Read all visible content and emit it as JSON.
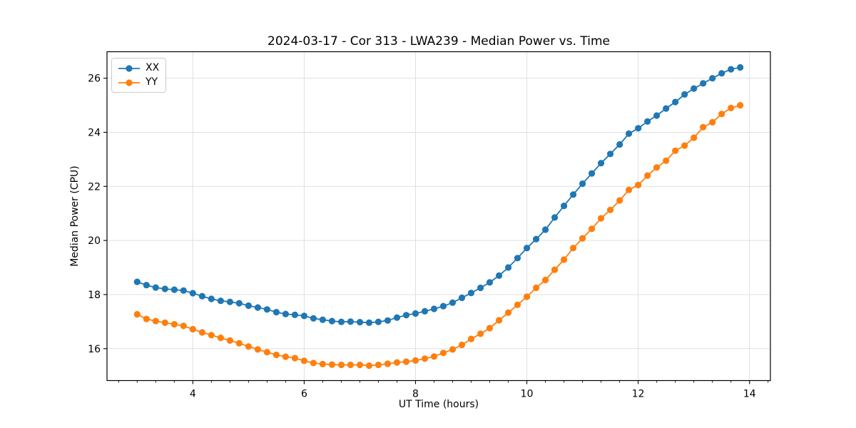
{
  "chart_data": {
    "type": "line",
    "title": "2024-03-17 - Cor 313 - LWA239 - Median Power vs. Time",
    "xlabel": "UT Time (hours)",
    "ylabel": "Median Power (CPU)",
    "xlim": [
      2.458,
      14.375
    ],
    "ylim": [
      14.82,
      26.98
    ],
    "xticks": [
      4,
      6,
      8,
      10,
      12,
      14
    ],
    "yticks": [
      16,
      18,
      20,
      22,
      24,
      26
    ],
    "x_minor_tick_step": 0.3333333,
    "grid": "on",
    "legend_position": "upper-left",
    "style": {
      "grid_color": "#e0e0e0",
      "spine_color": "#000000",
      "tick_color": "#000000",
      "text_color": "#000000",
      "marker_radius": 4.6,
      "line_width": 1.8
    },
    "x": [
      3.0,
      3.167,
      3.333,
      3.5,
      3.667,
      3.833,
      4.0,
      4.167,
      4.333,
      4.5,
      4.667,
      4.833,
      5.0,
      5.167,
      5.333,
      5.5,
      5.667,
      5.833,
      6.0,
      6.167,
      6.333,
      6.5,
      6.667,
      6.833,
      7.0,
      7.167,
      7.333,
      7.5,
      7.667,
      7.833,
      8.0,
      8.167,
      8.333,
      8.5,
      8.667,
      8.833,
      9.0,
      9.167,
      9.333,
      9.5,
      9.667,
      9.833,
      10.0,
      10.167,
      10.333,
      10.5,
      10.667,
      10.833,
      11.0,
      11.167,
      11.333,
      11.5,
      11.667,
      11.833,
      12.0,
      12.167,
      12.333,
      12.5,
      12.667,
      12.833,
      13.0,
      13.167,
      13.333,
      13.5,
      13.667,
      13.833
    ],
    "series": [
      {
        "name": "XX",
        "color": "#1f77b4",
        "values": [
          18.47,
          18.35,
          18.26,
          18.21,
          18.18,
          18.15,
          18.05,
          17.94,
          17.84,
          17.77,
          17.73,
          17.68,
          17.59,
          17.52,
          17.45,
          17.35,
          17.28,
          17.25,
          17.21,
          17.12,
          17.07,
          17.02,
          16.99,
          17.0,
          16.98,
          16.96,
          16.99,
          17.04,
          17.15,
          17.24,
          17.3,
          17.38,
          17.47,
          17.57,
          17.7,
          17.88,
          18.06,
          18.25,
          18.45,
          18.7,
          19.0,
          19.35,
          19.72,
          20.05,
          20.4,
          20.85,
          21.28,
          21.7,
          22.1,
          22.48,
          22.86,
          23.2,
          23.55,
          23.95,
          24.15,
          24.4,
          24.62,
          24.88,
          25.12,
          25.4,
          25.62,
          25.81,
          26.0,
          26.18,
          26.33,
          26.4
        ]
      },
      {
        "name": "YY",
        "color": "#ff7f0e",
        "values": [
          17.27,
          17.1,
          17.02,
          16.96,
          16.9,
          16.84,
          16.72,
          16.6,
          16.5,
          16.4,
          16.3,
          16.2,
          16.08,
          15.97,
          15.87,
          15.77,
          15.7,
          15.65,
          15.55,
          15.47,
          15.43,
          15.41,
          15.4,
          15.4,
          15.4,
          15.37,
          15.4,
          15.44,
          15.49,
          15.52,
          15.56,
          15.63,
          15.71,
          15.84,
          15.97,
          16.14,
          16.36,
          16.55,
          16.76,
          17.05,
          17.33,
          17.62,
          17.92,
          18.25,
          18.54,
          18.92,
          19.29,
          19.72,
          20.08,
          20.43,
          20.82,
          21.13,
          21.48,
          21.87,
          22.05,
          22.4,
          22.7,
          22.95,
          23.32,
          23.51,
          23.8,
          24.19,
          24.37,
          24.68,
          24.9,
          25.0
        ]
      }
    ]
  },
  "legend": {
    "items": [
      {
        "label": "XX"
      },
      {
        "label": "YY"
      }
    ]
  }
}
